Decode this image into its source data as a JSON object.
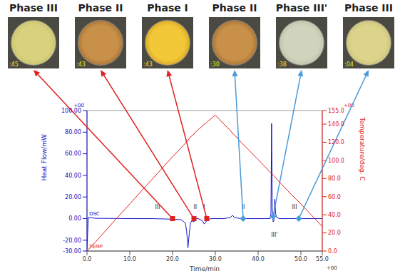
{
  "chart_data": {
    "type": "line",
    "x_label": "Time/min",
    "y_label": "Heat Flow/mW",
    "y2_label": "Temperature/deg. C",
    "axis_notes": {
      "x": "+00",
      "y": "+00",
      "y2": "+00"
    },
    "x": [
      0,
      0.3,
      2,
      5,
      10,
      15,
      20,
      22,
      23,
      23.3,
      23.6,
      23.9,
      24.2,
      24.5,
      25,
      25.3,
      25.6,
      26,
      27,
      27.4,
      27.8,
      28.2,
      29,
      30,
      32,
      33.5,
      34,
      34.5,
      36,
      40,
      42,
      42.8,
      43,
      43.15,
      43.3,
      43.5,
      43.7,
      43.9,
      44.1,
      44.4,
      45,
      47,
      50,
      55
    ],
    "series": [
      {
        "name": "DSC",
        "color": "#1414c8",
        "axis": "y",
        "values": [
          -28,
          1,
          0.3,
          0.2,
          0,
          0,
          -0.5,
          -1,
          -4,
          -12,
          -27,
          -14,
          -4,
          -2,
          -3,
          -1,
          0,
          0,
          -2,
          -5,
          -3,
          -1,
          0,
          0,
          0,
          1,
          3,
          1,
          0,
          0,
          0,
          0,
          5,
          88,
          10,
          -3,
          -2,
          18,
          4,
          1,
          0,
          0,
          0,
          0
        ]
      },
      {
        "name": "TEMP",
        "color": "#e0201c",
        "axis": "y2",
        "values": [
          0,
          1.5,
          10,
          26,
          52,
          78,
          104,
          114,
          119,
          121,
          122,
          124,
          126,
          127,
          129,
          131,
          132,
          134,
          138,
          140,
          141,
          143,
          146,
          150,
          140,
          133,
          130,
          128,
          120,
          101,
          91,
          87,
          86,
          85,
          85,
          84,
          83,
          82,
          81,
          79,
          76,
          66,
          52,
          27
        ]
      }
    ],
    "xlim": [
      0,
      55
    ],
    "xticks": [
      {
        "value": 0,
        "label": "0.0"
      },
      {
        "value": 10,
        "label": "10.0"
      },
      {
        "value": 20,
        "label": "20.0"
      },
      {
        "value": 30,
        "label": "30.0"
      },
      {
        "value": 40,
        "label": "40.0"
      },
      {
        "value": 50,
        "label": "50.0"
      },
      {
        "value": 55,
        "label": "55.0"
      }
    ],
    "ylim": [
      -30,
      100
    ],
    "yticks": [
      {
        "value": -30,
        "label": "-30.00"
      },
      {
        "value": -20,
        "label": "-20.00"
      },
      {
        "value": 0,
        "label": "0.00"
      },
      {
        "value": 20,
        "label": "20.00"
      },
      {
        "value": 40,
        "label": "40.00"
      },
      {
        "value": 60,
        "label": "60.00"
      },
      {
        "value": 80,
        "label": "80.00"
      },
      {
        "value": 100,
        "label": "100.00"
      }
    ],
    "y2lim": [
      0,
      155
    ],
    "y2ticks": [
      {
        "value": 0,
        "label": "0.0"
      },
      {
        "value": 20,
        "label": "20.0"
      },
      {
        "value": 40,
        "label": "40.0"
      },
      {
        "value": 60,
        "label": "60.0"
      },
      {
        "value": 80,
        "label": "80.0"
      },
      {
        "value": 100,
        "label": "100.0"
      },
      {
        "value": 120,
        "label": "120.0"
      },
      {
        "value": 140,
        "label": "140.0"
      },
      {
        "value": 155,
        "label": "155.0"
      }
    ],
    "annotations": [
      {
        "text": "III",
        "x": 16.5,
        "y": 9
      },
      {
        "text": "II",
        "x": 25.3,
        "y": 9
      },
      {
        "text": "I",
        "x": 27.4,
        "y": 9
      },
      {
        "text": "II",
        "x": 36.5,
        "y": 9
      },
      {
        "text": "III'",
        "x": 43.8,
        "y": -17
      },
      {
        "text": "III",
        "x": 48.5,
        "y": 9
      }
    ],
    "phases": [
      {
        "label": "Phase III",
        "time_label": ":45",
        "x": 20,
        "y": 0,
        "color": "#e02020",
        "marker": "square"
      },
      {
        "label": "Phase II",
        "time_label": ":43",
        "x": 25,
        "y": 0,
        "color": "#e02020",
        "marker": "square"
      },
      {
        "label": "Phase I",
        "time_label": ":43",
        "x": 28,
        "y": 0,
        "color": "#e02020",
        "marker": "square"
      },
      {
        "label": "Phase II",
        "time_label": ":30",
        "x": 36.5,
        "y": 0,
        "color": "#4a9ad8",
        "marker": "diamond"
      },
      {
        "label": "Phase III'",
        "time_label": ":38",
        "x": 43.5,
        "y": 2,
        "color": "#4a9ad8",
        "marker": "diamond"
      },
      {
        "label": "Phase III",
        "time_label": ":04",
        "x": 49.5,
        "y": 0,
        "color": "#4a9ad8",
        "marker": "diamond"
      }
    ]
  }
}
